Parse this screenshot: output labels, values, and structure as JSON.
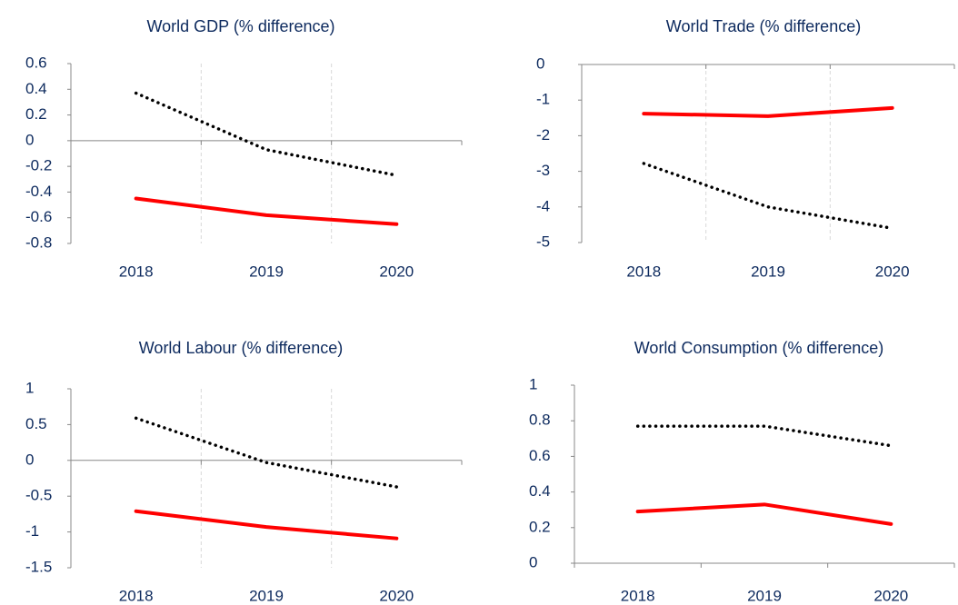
{
  "chart_data": [
    {
      "type": "line",
      "title": "World GDP (% difference)",
      "categories": [
        "2018",
        "2019",
        "2020"
      ],
      "series": [
        {
          "color": "#000000",
          "style": "dotted",
          "values": [
            0.37,
            -0.07,
            -0.27
          ]
        },
        {
          "color": "#ff0000",
          "style": "solid",
          "values": [
            -0.45,
            -0.58,
            -0.65
          ]
        }
      ],
      "ylim": [
        -0.8,
        0.6
      ],
      "yticks": [
        -0.8,
        -0.6,
        -0.4,
        -0.2,
        0,
        0.2,
        0.4,
        0.6
      ],
      "grid": true
    },
    {
      "type": "line",
      "title": "World Trade (% difference)",
      "categories": [
        "2018",
        "2019",
        "2020"
      ],
      "series": [
        {
          "color": "#ff0000",
          "style": "solid",
          "values": [
            -1.38,
            -1.45,
            -1.22
          ]
        },
        {
          "color": "#000000",
          "style": "dotted",
          "values": [
            -2.78,
            -4.0,
            -4.6
          ]
        }
      ],
      "ylim": [
        -5,
        0
      ],
      "yticks": [
        -5,
        -4,
        -3,
        -2,
        -1,
        0
      ],
      "grid": true
    },
    {
      "type": "line",
      "title": "World Labour (% difference)",
      "categories": [
        "2018",
        "2019",
        "2020"
      ],
      "series": [
        {
          "color": "#000000",
          "style": "dotted",
          "values": [
            0.59,
            -0.03,
            -0.37
          ]
        },
        {
          "color": "#ff0000",
          "style": "solid",
          "values": [
            -0.71,
            -0.93,
            -1.09
          ]
        }
      ],
      "ylim": [
        -1.5,
        1
      ],
      "yticks": [
        -1.5,
        -1,
        -0.5,
        0,
        0.5,
        1
      ],
      "grid": true
    },
    {
      "type": "line",
      "title": "World Consumption (% difference)",
      "categories": [
        "2018",
        "2019",
        "2020"
      ],
      "series": [
        {
          "color": "#000000",
          "style": "dotted",
          "values": [
            0.77,
            0.77,
            0.66
          ]
        },
        {
          "color": "#ff0000",
          "style": "solid",
          "values": [
            0.29,
            0.33,
            0.22
          ]
        }
      ],
      "ylim": [
        0,
        1
      ],
      "yticks": [
        0,
        0.2,
        0.4,
        0.6,
        0.8,
        1
      ],
      "grid": false
    }
  ]
}
